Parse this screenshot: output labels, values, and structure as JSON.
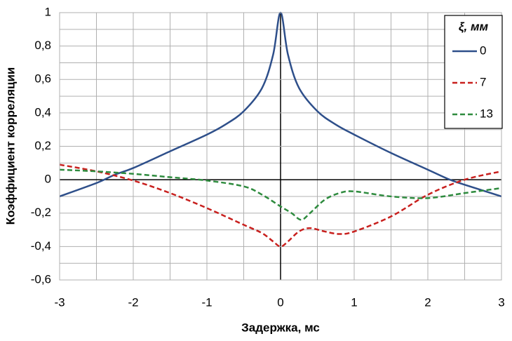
{
  "chart_data": {
    "type": "line",
    "x_label": "Задержка, мс",
    "y_label": "Коэффициент корреляции",
    "xlim": [
      -3,
      3
    ],
    "xticks": [
      -3,
      -2,
      -1,
      0,
      1,
      2,
      3
    ],
    "x_minor_grid": [
      -2.5,
      -1.5,
      -0.5,
      0.5,
      1.5,
      2.5
    ],
    "ylim": [
      -0.6,
      1
    ],
    "yticks": [
      {
        "value": -0.6,
        "label": "-0,6"
      },
      {
        "value": -0.4,
        "label": "-0,4"
      },
      {
        "value": -0.2,
        "label": "-0,2"
      },
      0,
      {
        "value": 0.2,
        "label": "0,2"
      },
      {
        "value": 0.4,
        "label": "0,4"
      },
      {
        "value": 0.6,
        "label": "0,6"
      },
      {
        "value": 0.8,
        "label": "0,8"
      },
      1
    ],
    "y_minor_grid": [
      -0.5,
      -0.3,
      -0.1,
      0.1,
      0.3,
      0.5,
      0.7,
      0.9
    ],
    "grid": true,
    "legend_title": "ξ, мм",
    "legend_position": "upper right",
    "series": [
      {
        "name": "0",
        "color": "#2e4f8a",
        "dash": "solid",
        "x": [
          -3,
          -2.5,
          -2.25,
          -2,
          -1.5,
          -1,
          -0.75,
          -0.5,
          -0.25,
          -0.1,
          0,
          0.1,
          0.25,
          0.5,
          0.75,
          1,
          1.5,
          2,
          2.3,
          2.5,
          3
        ],
        "values": [
          -0.1,
          -0.02,
          0.03,
          0.07,
          0.17,
          0.27,
          0.33,
          0.41,
          0.55,
          0.75,
          1,
          0.75,
          0.55,
          0.41,
          0.33,
          0.27,
          0.16,
          0.06,
          0,
          -0.03,
          -0.1
        ]
      },
      {
        "name": "7",
        "color": "#c8201e",
        "dash": "dashed",
        "x": [
          -3,
          -2.5,
          -2,
          -1.5,
          -1,
          -0.5,
          -0.25,
          -0.1,
          0,
          0.1,
          0.25,
          0.4,
          0.6,
          0.8,
          1,
          1.5,
          2,
          2.5,
          3
        ],
        "values": [
          0.09,
          0.05,
          -0.005,
          -0.08,
          -0.17,
          -0.27,
          -0.32,
          -0.37,
          -0.4,
          -0.37,
          -0.31,
          -0.29,
          -0.31,
          -0.325,
          -0.31,
          -0.22,
          -0.09,
          0,
          0.05
        ]
      },
      {
        "name": "13",
        "color": "#2e8b3e",
        "dash": "dashed",
        "x": [
          -3,
          -2.5,
          -2,
          -1.5,
          -1,
          -0.5,
          -0.25,
          0,
          0.15,
          0.28,
          0.4,
          0.6,
          0.8,
          1,
          1.5,
          2,
          2.5,
          3
        ],
        "values": [
          0.06,
          0.05,
          0.035,
          0.015,
          -0.005,
          -0.04,
          -0.09,
          -0.16,
          -0.2,
          -0.24,
          -0.2,
          -0.12,
          -0.08,
          -0.07,
          -0.1,
          -0.11,
          -0.08,
          -0.05
        ]
      }
    ]
  }
}
